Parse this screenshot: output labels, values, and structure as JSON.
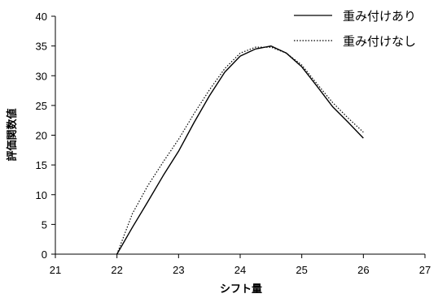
{
  "chart_data": {
    "type": "line",
    "xlabel": "シフト量",
    "ylabel": "評価関数値",
    "xlim": [
      21,
      27
    ],
    "ylim": [
      0,
      40
    ],
    "xticks": [
      21,
      22,
      23,
      24,
      25,
      26,
      27
    ],
    "yticks": [
      0,
      5,
      10,
      15,
      20,
      25,
      30,
      35,
      40
    ],
    "grid": false,
    "legend_position": "top-right",
    "series": [
      {
        "name": "重み付けあり",
        "style": "solid",
        "color": "#000000",
        "x": [
          22.0,
          22.25,
          22.5,
          22.75,
          23.0,
          23.25,
          23.5,
          23.75,
          24.0,
          24.25,
          24.5,
          24.75,
          25.0,
          25.25,
          25.5,
          25.75,
          26.0
        ],
        "y": [
          0.0,
          4.5,
          8.8,
          13.2,
          17.3,
          22.1,
          26.6,
          30.6,
          33.3,
          34.5,
          35.0,
          33.8,
          31.5,
          28.2,
          24.8,
          22.2,
          19.5
        ]
      },
      {
        "name": "重み付けなし",
        "style": "dotted",
        "color": "#000000",
        "x": [
          22.0,
          22.25,
          22.5,
          22.75,
          23.0,
          23.25,
          23.5,
          23.75,
          24.0,
          24.25,
          24.5,
          24.75,
          25.0,
          25.25,
          25.5,
          25.75,
          26.0
        ],
        "y": [
          0.0,
          6.8,
          11.5,
          15.5,
          19.3,
          23.6,
          27.6,
          31.2,
          33.8,
          34.8,
          34.8,
          33.8,
          31.8,
          28.6,
          25.5,
          22.9,
          20.5
        ]
      }
    ]
  }
}
